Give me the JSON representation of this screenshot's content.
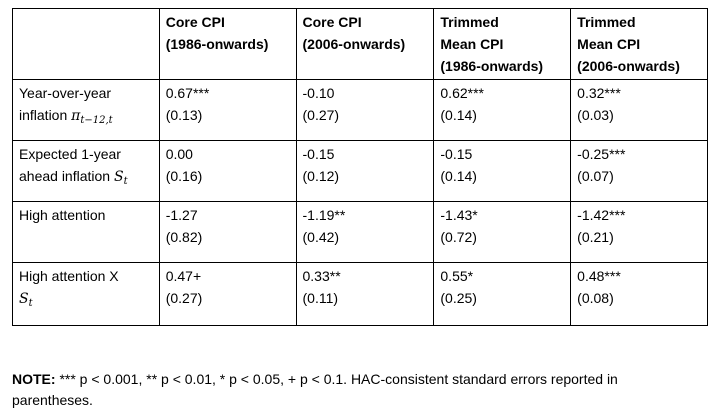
{
  "table": {
    "columns": [
      "",
      [
        "Core CPI",
        "(1986-onwards)"
      ],
      [
        "Core CPI",
        "(2006-onwards)"
      ],
      [
        "Trimmed",
        "Mean CPI",
        "(1986-onwards)"
      ],
      [
        "Trimmed",
        "Mean CPI",
        "(2006-onwards)"
      ]
    ],
    "rows": [
      {
        "label_lines": [
          "Year-over-year",
          "inflation"
        ],
        "label_math": "π",
        "label_math_sub": "t−12,t",
        "cells": [
          {
            "coef": "0.67***",
            "se": "(0.13)"
          },
          {
            "coef": "-0.10",
            "se": "(0.27)"
          },
          {
            "coef": "0.62***",
            "se": "(0.14)"
          },
          {
            "coef": "0.32***",
            "se": "(0.03)"
          }
        ]
      },
      {
        "label_lines": [
          "Expected 1-year",
          "ahead inflation"
        ],
        "label_math": "S",
        "label_math_sub": "t",
        "cells": [
          {
            "coef": "0.00",
            "se": "(0.16)"
          },
          {
            "coef": "-0.15",
            "se": "(0.12)"
          },
          {
            "coef": "-0.15",
            "se": "(0.14)"
          },
          {
            "coef": "-0.25***",
            "se": "(0.07)"
          }
        ]
      },
      {
        "label_lines": [
          "High attention",
          ""
        ],
        "label_math": "",
        "label_math_sub": "",
        "cells": [
          {
            "coef": "-1.27",
            "se": "(0.82)"
          },
          {
            "coef": "-1.19**",
            "se": "(0.42)"
          },
          {
            "coef": "-1.43*",
            "se": "(0.72)"
          },
          {
            "coef": "-1.42***",
            "se": "(0.21)"
          }
        ]
      },
      {
        "label_lines": [
          "High attention X",
          ""
        ],
        "label_math": "S",
        "label_math_sub": "t",
        "cells": [
          {
            "coef": "0.47+",
            "se": "(0.27)"
          },
          {
            "coef": "0.33**",
            "se": "(0.11)"
          },
          {
            "coef": "0.55*",
            "se": "(0.25)"
          },
          {
            "coef": "0.48***",
            "se": "(0.08)"
          }
        ]
      }
    ]
  },
  "note": {
    "label": "NOTE:",
    "line1": " *** p < 0.001, ** p < 0.01, * p < 0.05, + p < 0.1. HAC-consistent standard errors reported in",
    "line2": "parentheses."
  }
}
